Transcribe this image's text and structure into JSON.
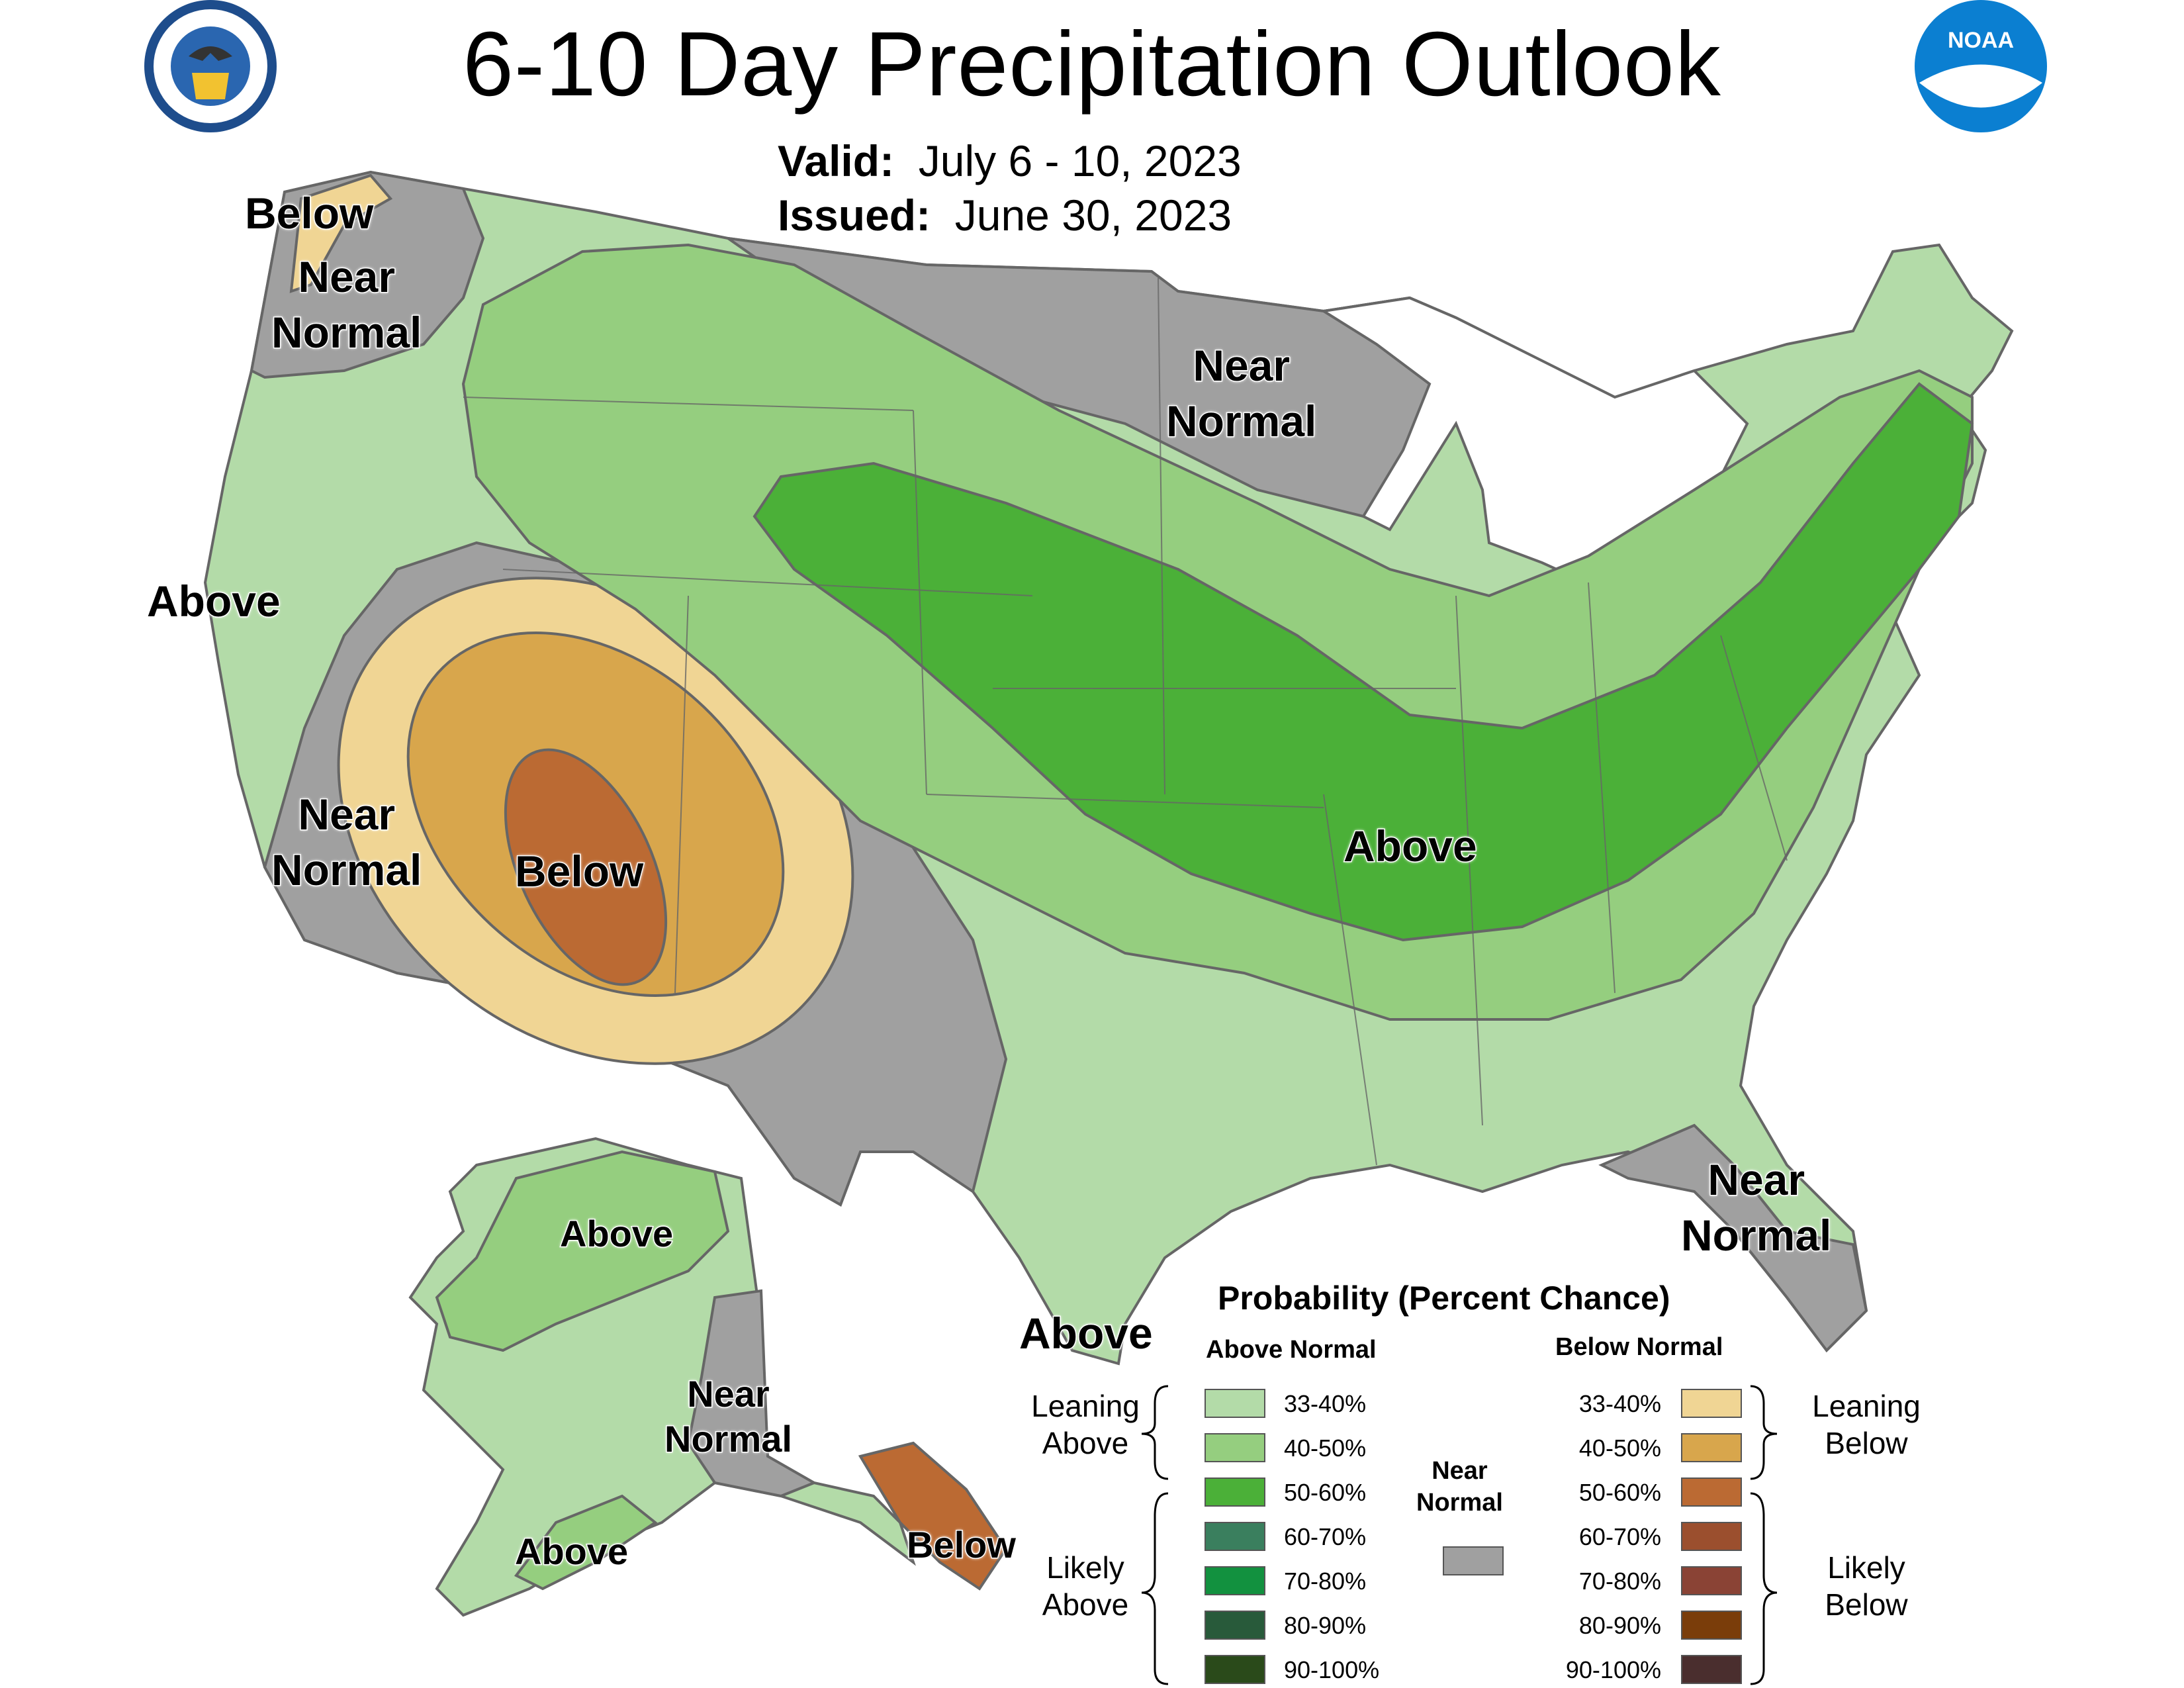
{
  "title": "6-10 Day Precipitation Outlook",
  "valid": {
    "label": "Valid:",
    "value": "July 6 - 10, 2023"
  },
  "issued": {
    "label": "Issued:",
    "value": "June 30, 2023"
  },
  "logos": {
    "left": "department-of-commerce-seal",
    "right": "noaa-logo",
    "right_text": "NOAA"
  },
  "map_labels": {
    "below_nw": "Below",
    "near_nw_1": "Near",
    "near_nw_2": "Normal",
    "above_w": "Above",
    "near_sw_1": "Near",
    "near_sw_2": "Normal",
    "below_sw": "Below",
    "near_n_1": "Near",
    "near_n_2": "Normal",
    "above_c": "Above",
    "above_tx": "Above",
    "near_fl_1": "Near",
    "near_fl_2": "Normal",
    "ak_above_n": "Above",
    "ak_near_1": "Near",
    "ak_near_2": "Normal",
    "ak_above_s": "Above",
    "ak_below": "Below"
  },
  "legend": {
    "title": "Probability (Percent Chance)",
    "above_header": "Above Normal",
    "below_header": "Below Normal",
    "leaning_above": [
      "Leaning",
      "Above"
    ],
    "likely_above": [
      "Likely",
      "Above"
    ],
    "leaning_below": [
      "Leaning",
      "Below"
    ],
    "likely_below": [
      "Likely",
      "Below"
    ],
    "near_normal": [
      "Near",
      "Normal"
    ],
    "near_color": "#a0a0a0",
    "above": [
      {
        "range": "33-40%",
        "color": "#b3dba8"
      },
      {
        "range": "40-50%",
        "color": "#95ce7f"
      },
      {
        "range": "50-60%",
        "color": "#4bb038"
      },
      {
        "range": "60-70%",
        "color": "#3a7f5e"
      },
      {
        "range": "70-80%",
        "color": "#12913f"
      },
      {
        "range": "80-90%",
        "color": "#285a3a"
      },
      {
        "range": "90-100%",
        "color": "#2a4a1a"
      }
    ],
    "below": [
      {
        "range": "33-40%",
        "color": "#f0d594"
      },
      {
        "range": "40-50%",
        "color": "#d8a64c"
      },
      {
        "range": "50-60%",
        "color": "#bb6a33"
      },
      {
        "range": "60-70%",
        "color": "#9b4f2e"
      },
      {
        "range": "70-80%",
        "color": "#8a4335"
      },
      {
        "range": "80-90%",
        "color": "#7a3d0a"
      },
      {
        "range": "90-100%",
        "color": "#4a2e2e"
      }
    ]
  }
}
